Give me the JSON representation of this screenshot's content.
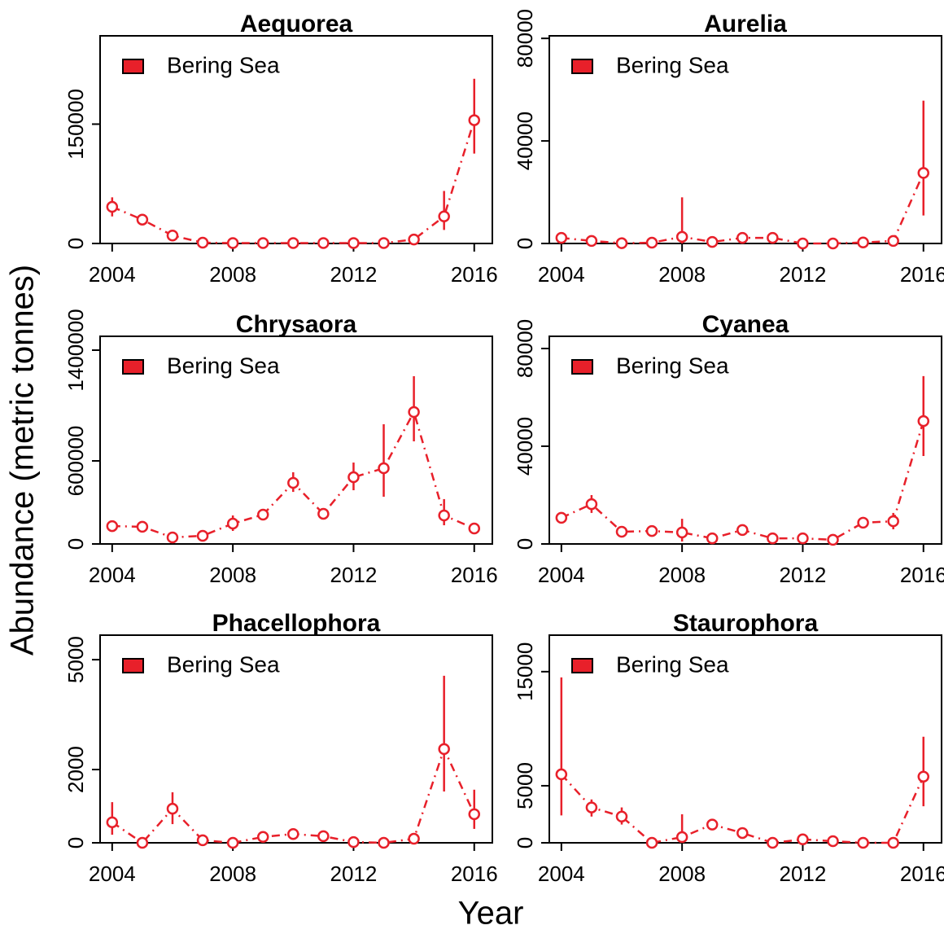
{
  "y_label": "Abundance (metric tonnes)",
  "x_label": "Year",
  "chart_data": [
    {
      "type": "line",
      "title": "Aequorea",
      "legend": "top-left",
      "x": [
        2004,
        2005,
        2006,
        2007,
        2008,
        2009,
        2010,
        2011,
        2012,
        2013,
        2014,
        2015,
        2016
      ],
      "xlim": [
        2003.6,
        2016.6
      ],
      "xticks": [
        2004,
        2008,
        2012,
        2016
      ],
      "ylim": [
        0,
        261000
      ],
      "yticks": [
        0,
        150000
      ],
      "series": [
        {
          "name": "Bering Sea",
          "color": "#e8202a",
          "values": [
            46000,
            30000,
            10000,
            1000,
            500,
            500,
            500,
            500,
            500,
            500,
            5000,
            34000,
            155000
          ],
          "lower": [
            34000,
            null,
            null,
            null,
            null,
            null,
            null,
            null,
            null,
            null,
            null,
            17000,
            113000
          ],
          "upper": [
            58000,
            null,
            null,
            null,
            null,
            null,
            null,
            null,
            null,
            null,
            null,
            66000,
            207000
          ]
        }
      ]
    },
    {
      "type": "line",
      "title": "Aurelia",
      "legend": "top-left",
      "x": [
        2004,
        2005,
        2006,
        2007,
        2008,
        2009,
        2010,
        2011,
        2012,
        2013,
        2014,
        2015,
        2016
      ],
      "xlim": [
        2003.6,
        2016.6
      ],
      "xticks": [
        2004,
        2008,
        2012,
        2016
      ],
      "ylim": [
        0,
        81000
      ],
      "yticks": [
        0,
        40000,
        80000
      ],
      "series": [
        {
          "name": "Bering Sea",
          "color": "#e8202a",
          "values": [
            2200,
            1000,
            100,
            300,
            2600,
            600,
            2200,
            2200,
            0,
            0,
            400,
            1000,
            27500
          ],
          "lower": [
            null,
            null,
            null,
            null,
            0,
            null,
            null,
            null,
            null,
            null,
            null,
            null,
            10900
          ],
          "upper": [
            null,
            null,
            null,
            null,
            18000,
            null,
            null,
            null,
            null,
            null,
            null,
            null,
            55700
          ]
        }
      ]
    },
    {
      "type": "line",
      "title": "Chrysaora",
      "legend": "top-left",
      "x": [
        2004,
        2005,
        2006,
        2007,
        2008,
        2009,
        2010,
        2011,
        2012,
        2013,
        2014,
        2015,
        2016
      ],
      "xlim": [
        2003.6,
        2016.6
      ],
      "xticks": [
        2004,
        2008,
        2012,
        2016
      ],
      "ylim": [
        0,
        1500000
      ],
      "yticks": [
        0,
        600000,
        1400000
      ],
      "series": [
        {
          "name": "Bering Sea",
          "color": "#e8202a",
          "values": [
            129000,
            124000,
            47000,
            59000,
            147000,
            212000,
            441000,
            218000,
            482000,
            547000,
            953000,
            206000,
            112000
          ],
          "lower": [
            null,
            null,
            null,
            null,
            94000,
            null,
            376000,
            null,
            388000,
            341000,
            741000,
            135000,
            null
          ],
          "upper": [
            null,
            null,
            null,
            null,
            206000,
            null,
            518000,
            null,
            588000,
            865000,
            1212000,
            324000,
            null
          ]
        }
      ]
    },
    {
      "type": "line",
      "title": "Cyanea",
      "legend": "top-left",
      "x": [
        2004,
        2005,
        2006,
        2007,
        2008,
        2009,
        2010,
        2011,
        2012,
        2013,
        2014,
        2015,
        2016
      ],
      "xlim": [
        2003.6,
        2016.6
      ],
      "xticks": [
        2004,
        2008,
        2012,
        2016
      ],
      "ylim": [
        0,
        85000
      ],
      "yticks": [
        0,
        40000,
        80000
      ],
      "series": [
        {
          "name": "Bering Sea",
          "color": "#e8202a",
          "values": [
            10700,
            16300,
            5000,
            5300,
            4700,
            2300,
            5700,
            2300,
            2300,
            1700,
            8700,
            9300,
            50300
          ],
          "lower": [
            null,
            12700,
            null,
            null,
            1000,
            null,
            null,
            null,
            null,
            null,
            null,
            6000,
            36000
          ],
          "upper": [
            null,
            20000,
            null,
            null,
            10300,
            null,
            null,
            null,
            null,
            null,
            null,
            12700,
            68700
          ]
        }
      ]
    },
    {
      "type": "line",
      "title": "Phacellophora",
      "legend": "top-left",
      "x": [
        2004,
        2005,
        2006,
        2007,
        2008,
        2009,
        2010,
        2011,
        2012,
        2013,
        2014,
        2015,
        2016
      ],
      "xlim": [
        2003.6,
        2016.6
      ],
      "xticks": [
        2004,
        2008,
        2012,
        2016
      ],
      "ylim": [
        0,
        5670
      ],
      "yticks": [
        0,
        2000,
        5000
      ],
      "series": [
        {
          "name": "Bering Sea",
          "color": "#e8202a",
          "values": [
            560,
            0,
            930,
            70,
            0,
            160,
            240,
            180,
            20,
            0,
            110,
            2560,
            780
          ],
          "lower": [
            220,
            null,
            510,
            null,
            null,
            null,
            null,
            null,
            null,
            null,
            null,
            1400,
            380
          ],
          "upper": [
            1110,
            null,
            1380,
            null,
            null,
            null,
            null,
            null,
            null,
            null,
            null,
            4560,
            1450
          ]
        }
      ]
    },
    {
      "type": "line",
      "title": "Staurophora",
      "legend": "top-left",
      "x": [
        2004,
        2005,
        2006,
        2007,
        2008,
        2009,
        2010,
        2011,
        2012,
        2013,
        2014,
        2015,
        2016
      ],
      "xlim": [
        2003.6,
        2016.6
      ],
      "xticks": [
        2004,
        2008,
        2012,
        2016
      ],
      "ylim": [
        0,
        18200
      ],
      "yticks": [
        0,
        5000,
        15000
      ],
      "series": [
        {
          "name": "Bering Sea",
          "color": "#e8202a",
          "values": [
            6000,
            3100,
            2300,
            0,
            500,
            1600,
            860,
            0,
            300,
            140,
            0,
            0,
            5800
          ],
          "lower": [
            2400,
            2300,
            1600,
            null,
            0,
            null,
            null,
            null,
            null,
            null,
            null,
            null,
            3200
          ],
          "upper": [
            14500,
            3800,
            3100,
            null,
            2500,
            null,
            null,
            null,
            null,
            null,
            null,
            null,
            9300
          ]
        }
      ]
    }
  ]
}
